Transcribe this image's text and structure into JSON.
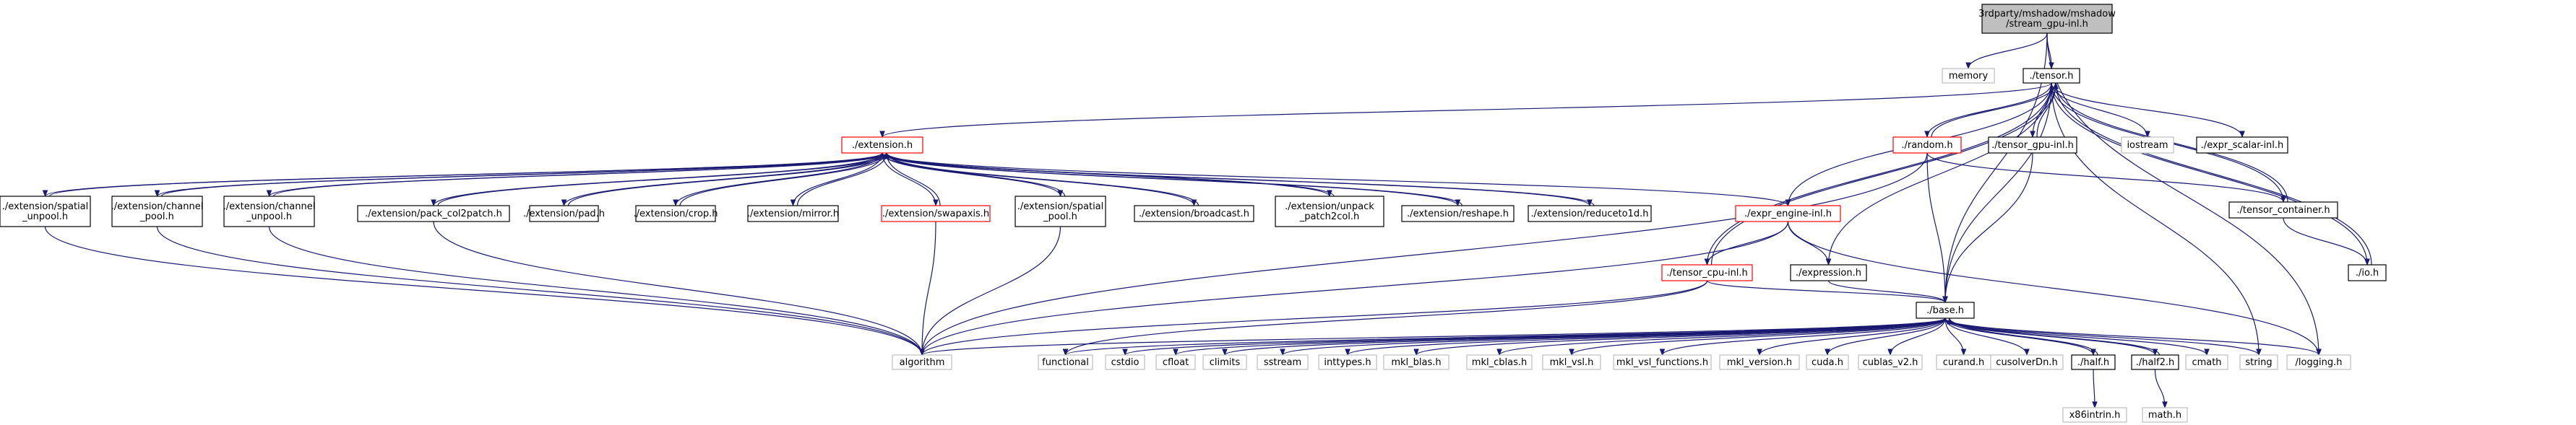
{
  "graph": {
    "colors": {
      "edge": "#191970",
      "root_fill": "#bfbfbf",
      "root_border": "#000000",
      "normal_border": "#000000",
      "red_border": "#ff0000",
      "external_border": "#bfbfbf"
    },
    "nodes": [
      {
        "id": "root",
        "kind": "root",
        "lines": [
          "3rdparty/mshadow/mshadow",
          "/stream_gpu-inl.h"
        ]
      },
      {
        "id": "memory",
        "kind": "external",
        "lines": [
          "memory"
        ]
      },
      {
        "id": "tensor",
        "kind": "normal",
        "lines": [
          "./tensor.h"
        ]
      },
      {
        "id": "iostream",
        "kind": "external",
        "lines": [
          "iostream"
        ]
      },
      {
        "id": "tensor_gpu",
        "kind": "normal",
        "lines": [
          "./tensor_gpu-inl.h"
        ]
      },
      {
        "id": "expr_scalar",
        "kind": "normal",
        "lines": [
          "./expr_scalar-inl.h"
        ]
      },
      {
        "id": "random",
        "kind": "red",
        "lines": [
          "./random.h"
        ]
      },
      {
        "id": "tensor_container",
        "kind": "normal",
        "lines": [
          "./tensor_container.h"
        ]
      },
      {
        "id": "io",
        "kind": "normal",
        "lines": [
          "./io.h"
        ]
      },
      {
        "id": "extension",
        "kind": "red",
        "lines": [
          "./extension.h"
        ]
      },
      {
        "id": "spatial_unpool",
        "kind": "normal",
        "lines": [
          "./extension/spatial",
          "_unpool.h"
        ]
      },
      {
        "id": "channel_pool",
        "kind": "normal",
        "lines": [
          "./extension/channel",
          "_pool.h"
        ]
      },
      {
        "id": "channel_unpool",
        "kind": "normal",
        "lines": [
          "./extension/channel",
          "_unpool.h"
        ]
      },
      {
        "id": "pack_col2patch",
        "kind": "normal",
        "lines": [
          "./extension/pack_col2patch.h"
        ]
      },
      {
        "id": "pad",
        "kind": "normal",
        "lines": [
          "./extension/pad.h"
        ]
      },
      {
        "id": "crop",
        "kind": "normal",
        "lines": [
          "./extension/crop.h"
        ]
      },
      {
        "id": "mirror",
        "kind": "normal",
        "lines": [
          "./extension/mirror.h"
        ]
      },
      {
        "id": "swapaxis",
        "kind": "red",
        "lines": [
          "./extension/swapaxis.h"
        ]
      },
      {
        "id": "spatial_pool",
        "kind": "normal",
        "lines": [
          "./extension/spatial",
          "_pool.h"
        ]
      },
      {
        "id": "broadcast",
        "kind": "normal",
        "lines": [
          "./extension/broadcast.h"
        ]
      },
      {
        "id": "unpack_patch2col",
        "kind": "normal",
        "lines": [
          "./extension/unpack",
          "_patch2col.h"
        ]
      },
      {
        "id": "reshape",
        "kind": "normal",
        "lines": [
          "./extension/reshape.h"
        ]
      },
      {
        "id": "reduceto1d",
        "kind": "normal",
        "lines": [
          "./extension/reduceto1d.h"
        ]
      },
      {
        "id": "expr_engine",
        "kind": "red",
        "lines": [
          "./expr_engine-inl.h"
        ]
      },
      {
        "id": "tensor_cpu",
        "kind": "red",
        "lines": [
          "./tensor_cpu-inl.h"
        ]
      },
      {
        "id": "expression",
        "kind": "normal",
        "lines": [
          "./expression.h"
        ]
      },
      {
        "id": "base",
        "kind": "normal",
        "lines": [
          "./base.h"
        ]
      },
      {
        "id": "algorithm",
        "kind": "external",
        "lines": [
          "algorithm"
        ]
      },
      {
        "id": "functional",
        "kind": "external",
        "lines": [
          "functional"
        ]
      },
      {
        "id": "cstdio",
        "kind": "external",
        "lines": [
          "cstdio"
        ]
      },
      {
        "id": "cfloat",
        "kind": "external",
        "lines": [
          "cfloat"
        ]
      },
      {
        "id": "climits",
        "kind": "external",
        "lines": [
          "climits"
        ]
      },
      {
        "id": "sstream",
        "kind": "external",
        "lines": [
          "sstream"
        ]
      },
      {
        "id": "inttypes",
        "kind": "external",
        "lines": [
          "inttypes.h"
        ]
      },
      {
        "id": "mkl_blas",
        "kind": "external",
        "lines": [
          "mkl_blas.h"
        ]
      },
      {
        "id": "mkl_cblas",
        "kind": "external",
        "lines": [
          "mkl_cblas.h"
        ]
      },
      {
        "id": "mkl_vsl",
        "kind": "external",
        "lines": [
          "mkl_vsl.h"
        ]
      },
      {
        "id": "mkl_vsl_functions",
        "kind": "external",
        "lines": [
          "mkl_vsl_functions.h"
        ]
      },
      {
        "id": "mkl_version",
        "kind": "external",
        "lines": [
          "mkl_version.h"
        ]
      },
      {
        "id": "cuda",
        "kind": "external",
        "lines": [
          "cuda.h"
        ]
      },
      {
        "id": "cublas_v2",
        "kind": "external",
        "lines": [
          "cublas_v2.h"
        ]
      },
      {
        "id": "curand",
        "kind": "external",
        "lines": [
          "curand.h"
        ]
      },
      {
        "id": "cusolverDn",
        "kind": "external",
        "lines": [
          "cusolverDn.h"
        ]
      },
      {
        "id": "half",
        "kind": "normal",
        "lines": [
          "./half.h"
        ]
      },
      {
        "id": "half2",
        "kind": "normal",
        "lines": [
          "./half2.h"
        ]
      },
      {
        "id": "cmath",
        "kind": "external",
        "lines": [
          "cmath"
        ]
      },
      {
        "id": "string",
        "kind": "external",
        "lines": [
          "string"
        ]
      },
      {
        "id": "logging",
        "kind": "external",
        "lines": [
          "/logging.h"
        ]
      },
      {
        "id": "x86intrin",
        "kind": "external",
        "lines": [
          "x86intrin.h"
        ]
      },
      {
        "id": "math",
        "kind": "external",
        "lines": [
          "math.h"
        ]
      }
    ],
    "edges": [
      [
        "root",
        "memory"
      ],
      [
        "root",
        "tensor"
      ],
      [
        "root",
        "base"
      ],
      [
        "root",
        "logging"
      ],
      [
        "tensor",
        "extension"
      ],
      [
        "tensor",
        "iostream"
      ],
      [
        "tensor",
        "tensor_gpu"
      ],
      [
        "tensor",
        "expr_scalar"
      ],
      [
        "tensor",
        "random"
      ],
      [
        "tensor",
        "tensor_container"
      ],
      [
        "tensor",
        "io"
      ],
      [
        "tensor",
        "expr_engine"
      ],
      [
        "tensor",
        "tensor_cpu"
      ],
      [
        "tensor",
        "expression"
      ],
      [
        "tensor",
        "base"
      ],
      [
        "tensor",
        "string"
      ],
      [
        "io",
        "tensor"
      ],
      [
        "tensor_container",
        "tensor"
      ],
      [
        "tensor_gpu",
        "tensor"
      ],
      [
        "tensor_cpu",
        "tensor"
      ],
      [
        "random",
        "tensor"
      ],
      [
        "tensor_container",
        "io"
      ],
      [
        "random",
        "tensor_container"
      ],
      [
        "random",
        "base"
      ],
      [
        "random",
        "algorithm"
      ],
      [
        "tensor_gpu",
        "base"
      ],
      [
        "tensor_cpu",
        "base"
      ],
      [
        "tensor_cpu",
        "algorithm"
      ],
      [
        "tensor_cpu",
        "functional"
      ],
      [
        "expr_engine",
        "expression"
      ],
      [
        "expr_engine",
        "algorithm"
      ],
      [
        "expr_engine",
        "logging"
      ],
      [
        "expr_engine",
        "tensor_cpu"
      ],
      [
        "expression",
        "base"
      ],
      [
        "extension",
        "spatial_unpool"
      ],
      [
        "extension",
        "channel_pool"
      ],
      [
        "extension",
        "channel_unpool"
      ],
      [
        "extension",
        "pack_col2patch"
      ],
      [
        "extension",
        "pad"
      ],
      [
        "extension",
        "crop"
      ],
      [
        "extension",
        "mirror"
      ],
      [
        "extension",
        "swapaxis"
      ],
      [
        "extension",
        "spatial_pool"
      ],
      [
        "extension",
        "broadcast"
      ],
      [
        "extension",
        "unpack_patch2col"
      ],
      [
        "extension",
        "reshape"
      ],
      [
        "extension",
        "reduceto1d"
      ],
      [
        "extension",
        "expr_engine"
      ],
      [
        "spatial_unpool",
        "extension"
      ],
      [
        "channel_pool",
        "extension"
      ],
      [
        "channel_unpool",
        "extension"
      ],
      [
        "pack_col2patch",
        "extension"
      ],
      [
        "pad",
        "extension"
      ],
      [
        "crop",
        "extension"
      ],
      [
        "mirror",
        "extension"
      ],
      [
        "swapaxis",
        "extension"
      ],
      [
        "spatial_pool",
        "extension"
      ],
      [
        "broadcast",
        "extension"
      ],
      [
        "unpack_patch2col",
        "extension"
      ],
      [
        "reshape",
        "extension"
      ],
      [
        "reduceto1d",
        "extension"
      ],
      [
        "spatial_unpool",
        "algorithm"
      ],
      [
        "channel_pool",
        "algorithm"
      ],
      [
        "channel_unpool",
        "algorithm"
      ],
      [
        "pack_col2patch",
        "algorithm"
      ],
      [
        "swapaxis",
        "algorithm"
      ],
      [
        "spatial_pool",
        "algorithm"
      ],
      [
        "base",
        "algorithm"
      ],
      [
        "base",
        "functional"
      ],
      [
        "base",
        "cstdio"
      ],
      [
        "base",
        "cfloat"
      ],
      [
        "base",
        "climits"
      ],
      [
        "base",
        "sstream"
      ],
      [
        "base",
        "inttypes"
      ],
      [
        "base",
        "mkl_blas"
      ],
      [
        "base",
        "mkl_cblas"
      ],
      [
        "base",
        "mkl_vsl"
      ],
      [
        "base",
        "mkl_vsl_functions"
      ],
      [
        "base",
        "mkl_version"
      ],
      [
        "base",
        "cuda"
      ],
      [
        "base",
        "cublas_v2"
      ],
      [
        "base",
        "curand"
      ],
      [
        "base",
        "cusolverDn"
      ],
      [
        "base",
        "half"
      ],
      [
        "base",
        "half2"
      ],
      [
        "base",
        "cmath"
      ],
      [
        "base",
        "string"
      ],
      [
        "base",
        "logging"
      ],
      [
        "half",
        "base"
      ],
      [
        "half2",
        "base"
      ],
      [
        "half",
        "x86intrin"
      ],
      [
        "half2",
        "math"
      ]
    ]
  }
}
